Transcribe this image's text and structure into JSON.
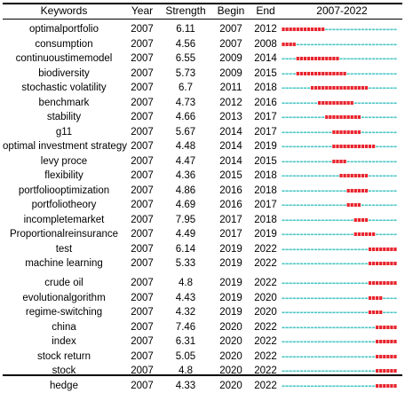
{
  "headers": {
    "keywords": "Keywords",
    "year": "Year",
    "strength": "Strength",
    "begin": "Begin",
    "end": "End",
    "timeline": "2007-2022"
  },
  "colors": {
    "base_segment": "#4cc6c6",
    "burst_segment": "#e8242d"
  },
  "chart_data": {
    "type": "table",
    "timeline_start": 2007,
    "timeline_end": 2022,
    "rows": [
      {
        "keyword": "optimalportfolio",
        "year": "2007",
        "strength": "6.11",
        "begin": "2007",
        "end": "2012"
      },
      {
        "keyword": "consumption",
        "year": "2007",
        "strength": "4.56",
        "begin": "2007",
        "end": "2008"
      },
      {
        "keyword": "continuoustimemodel",
        "year": "2007",
        "strength": "6.55",
        "begin": "2009",
        "end": "2014"
      },
      {
        "keyword": "biodiversity",
        "year": "2007",
        "strength": "5.73",
        "begin": "2009",
        "end": "2015"
      },
      {
        "keyword": "stochastic volatility",
        "year": "2007",
        "strength": "6.7",
        "begin": "2011",
        "end": "2018"
      },
      {
        "keyword": "benchmark",
        "year": "2007",
        "strength": "4.73",
        "begin": "2012",
        "end": "2016"
      },
      {
        "keyword": "stability",
        "year": "2007",
        "strength": "4.66",
        "begin": "2013",
        "end": "2017"
      },
      {
        "keyword": "g11",
        "year": "2007",
        "strength": "5.67",
        "begin": "2014",
        "end": "2017"
      },
      {
        "keyword": "optimal investment strategy",
        "year": "2007",
        "strength": "4.48",
        "begin": "2014",
        "end": "2019"
      },
      {
        "keyword": "levy proce",
        "year": "2007",
        "strength": "4.47",
        "begin": "2014",
        "end": "2015"
      },
      {
        "keyword": "flexibility",
        "year": "2007",
        "strength": "4.36",
        "begin": "2015",
        "end": "2018"
      },
      {
        "keyword": "portfoliooptimization",
        "year": "2007",
        "strength": "4.86",
        "begin": "2016",
        "end": "2018"
      },
      {
        "keyword": "portfoliotheory",
        "year": "2007",
        "strength": "4.69",
        "begin": "2016",
        "end": "2017"
      },
      {
        "keyword": "incompletemarket",
        "year": "2007",
        "strength": "7.95",
        "begin": "2017",
        "end": "2018"
      },
      {
        "keyword": "Proportionalreinsurance",
        "year": "2007",
        "strength": "4.49",
        "begin": "2017",
        "end": "2019"
      },
      {
        "keyword": "test",
        "year": "2007",
        "strength": "6.14",
        "begin": "2019",
        "end": "2022"
      },
      {
        "keyword": "machine learning",
        "year": "2007",
        "strength": "5.33",
        "begin": "2019",
        "end": "2022"
      },
      {
        "keyword": "crude oil",
        "year": "2007",
        "strength": "4.8",
        "begin": "2019",
        "end": "2022"
      },
      {
        "keyword": "evolutionalgorithm",
        "year": "2007",
        "strength": "4.43",
        "begin": "2019",
        "end": "2020"
      },
      {
        "keyword": "regime-switching",
        "year": "2007",
        "strength": "4.32",
        "begin": "2019",
        "end": "2020"
      },
      {
        "keyword": "china",
        "year": "2007",
        "strength": "7.46",
        "begin": "2020",
        "end": "2022"
      },
      {
        "keyword": "index",
        "year": "2007",
        "strength": "6.31",
        "begin": "2020",
        "end": "2022"
      },
      {
        "keyword": "stock return",
        "year": "2007",
        "strength": "5.05",
        "begin": "2020",
        "end": "2022"
      },
      {
        "keyword": "stock",
        "year": "2007",
        "strength": "4.8",
        "begin": "2020",
        "end": "2022"
      },
      {
        "keyword": "hedge",
        "year": "2007",
        "strength": "4.33",
        "begin": "2020",
        "end": "2022"
      }
    ]
  }
}
